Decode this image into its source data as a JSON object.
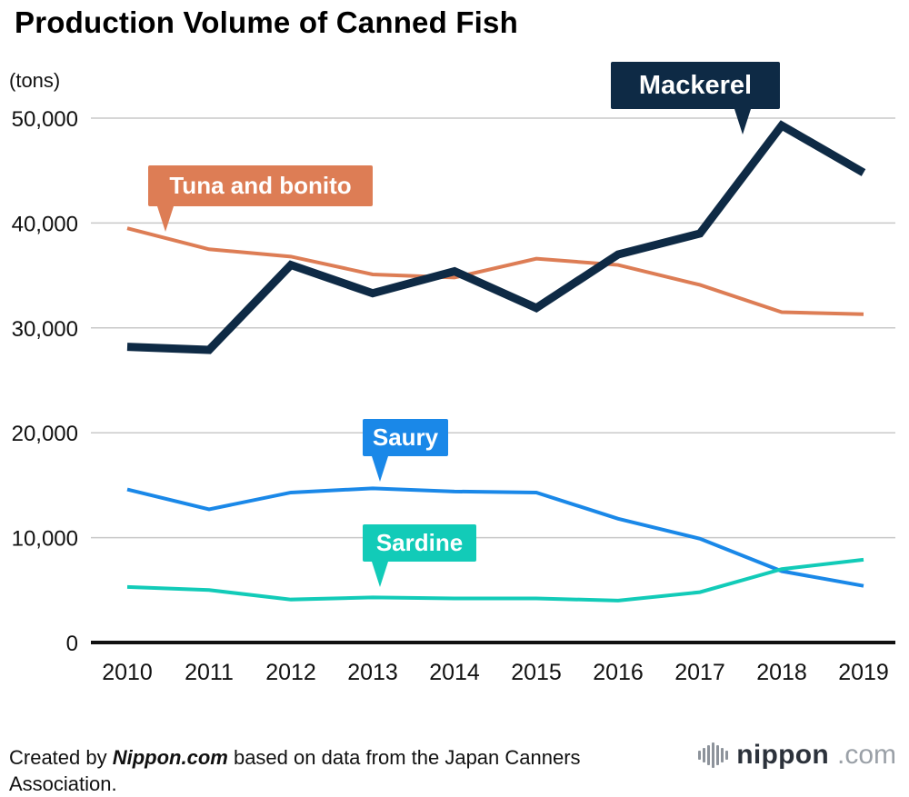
{
  "chart_data": {
    "type": "line",
    "title": "Production Volume of Canned Fish",
    "unit_label": "(tons)",
    "xlabel": "",
    "ylabel": "(tons)",
    "ylim": [
      0,
      50000
    ],
    "grid": true,
    "legend_position": "callouts-on-chart",
    "categories": [
      "2010",
      "2011",
      "2012",
      "2013",
      "2014",
      "2015",
      "2016",
      "2017",
      "2018",
      "2019"
    ],
    "y_ticks": [
      {
        "value": 0,
        "label": "0"
      },
      {
        "value": 10000,
        "label": "10,000"
      },
      {
        "value": 20000,
        "label": "20,000"
      },
      {
        "value": 30000,
        "label": "30,000"
      },
      {
        "value": 40000,
        "label": "40,000"
      },
      {
        "value": 50000,
        "label": "50,000"
      }
    ],
    "series": [
      {
        "name": "Mackerel",
        "color": "#0e2a45",
        "width": 9,
        "values": [
          28200,
          27900,
          36000,
          33300,
          35400,
          31900,
          37000,
          39000,
          49300,
          44800
        ]
      },
      {
        "name": "Tuna and bonito",
        "color": "#dd7d55",
        "width": 4,
        "values": [
          39500,
          37500,
          36800,
          35100,
          34800,
          36600,
          36000,
          34100,
          31500,
          31300
        ]
      },
      {
        "name": "Saury",
        "color": "#1a88e8",
        "width": 4,
        "values": [
          14600,
          12700,
          14300,
          14700,
          14400,
          14300,
          11800,
          9900,
          6800,
          5400
        ]
      },
      {
        "name": "Sardine",
        "color": "#12cbb8",
        "width": 4,
        "values": [
          5300,
          5000,
          4100,
          4300,
          4200,
          4200,
          4000,
          4800,
          7000,
          7900
        ]
      }
    ]
  },
  "footer": {
    "prefix": "Created by ",
    "brand": "Nippon.com",
    "suffix": " based on data from the Japan Canners Association."
  },
  "logo": {
    "name": "nippon",
    "tld": ".com"
  }
}
